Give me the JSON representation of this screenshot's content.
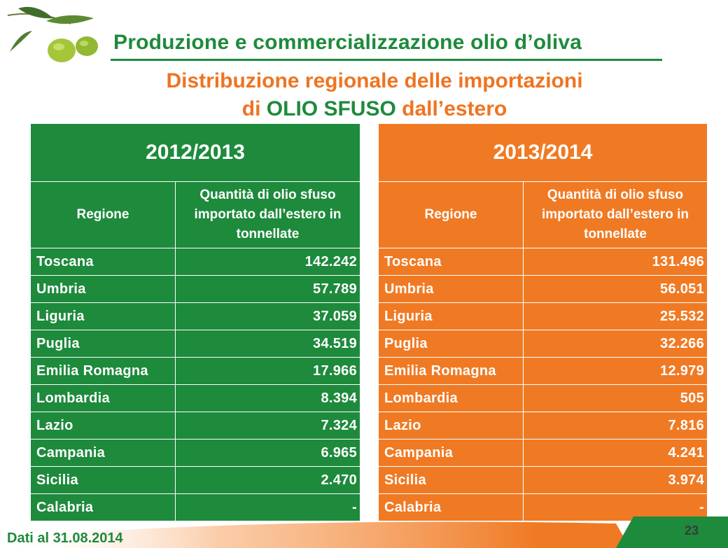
{
  "header": {
    "title": "Produzione e commercializzazione olio d’oliva",
    "subtitle_line1": "Distribuzione regionale delle importazioni",
    "subtitle_line2_pre": "di ",
    "subtitle_line2_highlight": "OLIO SFUSO",
    "subtitle_line2_post": " dall’estero"
  },
  "tables": [
    {
      "year": "2012/2013",
      "col_region": "Regione",
      "col_quantity": "Quantità di olio sfuso importato dall’estero in tonnellate",
      "rows": [
        {
          "region": "Toscana",
          "value": "142.242"
        },
        {
          "region": "Umbria",
          "value": "57.789"
        },
        {
          "region": "Liguria",
          "value": "37.059"
        },
        {
          "region": "Puglia",
          "value": "34.519"
        },
        {
          "region": "Emilia Romagna",
          "value": "17.966"
        },
        {
          "region": "Lombardia",
          "value": "8.394"
        },
        {
          "region": "Lazio",
          "value": "7.324"
        },
        {
          "region": "Campania",
          "value": "6.965"
        },
        {
          "region": "Sicilia",
          "value": "2.470"
        },
        {
          "region": "Calabria",
          "value": "-"
        }
      ]
    },
    {
      "year": "2013/2014",
      "col_region": "Regione",
      "col_quantity": "Quantità di olio sfuso importato dall’estero in tonnellate",
      "rows": [
        {
          "region": "Toscana",
          "value": "131.496"
        },
        {
          "region": "Umbria",
          "value": "56.051"
        },
        {
          "region": "Liguria",
          "value": "25.532"
        },
        {
          "region": "Puglia",
          "value": "32.266"
        },
        {
          "region": "Emilia Romagna",
          "value": "12.979"
        },
        {
          "region": "Lombardia",
          "value": "505"
        },
        {
          "region": "Lazio",
          "value": "7.816"
        },
        {
          "region": "Campania",
          "value": "4.241"
        },
        {
          "region": "Sicilia",
          "value": "3.974"
        },
        {
          "region": "Calabria",
          "value": "-"
        }
      ]
    }
  ],
  "footer": {
    "date": "Dati al 31.08.2014",
    "page_number": "23"
  },
  "colors": {
    "green": "#1e8a3c",
    "orange": "#f07a24"
  }
}
